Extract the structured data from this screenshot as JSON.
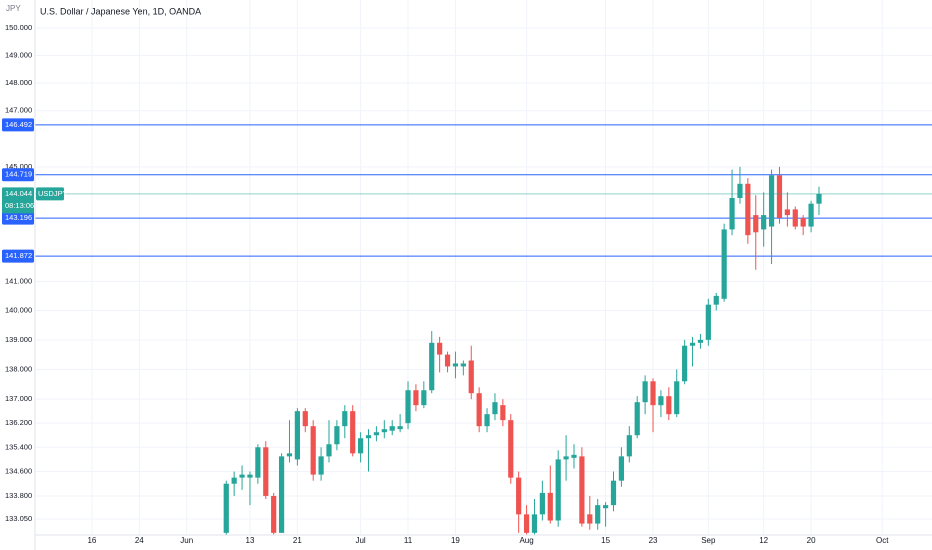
{
  "chart_data": {
    "type": "candlestick",
    "title": "U.S. Dollar / Japanese Yen, 1D, OANDA",
    "currency": "JPY",
    "symbol": "USDJPY",
    "countdown": "08:13:06",
    "log_scale": true,
    "grid": true,
    "up_color": "#26a69a",
    "down_color": "#ef5350",
    "line_color": "#2962ff",
    "x": [
      -3,
      -2,
      -1,
      0,
      1,
      2,
      3,
      4,
      5,
      6,
      7,
      8,
      9,
      10,
      11,
      12,
      13,
      14,
      15,
      16,
      17,
      18,
      19,
      20,
      21,
      22,
      23,
      24,
      25,
      26,
      27,
      28,
      29,
      30,
      31,
      32,
      33,
      34,
      35,
      36,
      37,
      38,
      39,
      40,
      41,
      42,
      43,
      44,
      45,
      46,
      47,
      48,
      49,
      50,
      51,
      52,
      53,
      54,
      55,
      56,
      57,
      58,
      59,
      60,
      61,
      62,
      63,
      64,
      65,
      66,
      67,
      68,
      69,
      70,
      71,
      72
    ],
    "open": [
      132.6,
      134.2,
      134.4,
      134.4,
      134.4,
      135.4,
      133.8,
      132.6,
      135.1,
      135.0,
      136.6,
      136.1,
      134.5,
      135.1,
      135.5,
      136.1,
      136.6,
      135.2,
      135.7,
      135.8,
      135.9,
      135.95,
      136.0,
      136.2,
      137.3,
      136.8,
      137.3,
      138.9,
      138.5,
      138.1,
      138.1,
      138.3,
      137.2,
      136.1,
      136.5,
      136.8,
      136.3,
      134.4,
      133.2,
      132.6,
      133.2,
      133.9,
      133.0,
      135.0,
      135.05,
      135.1,
      133.2,
      132.9,
      133.4,
      133.5,
      134.3,
      135.1,
      135.8,
      136.9,
      137.6,
      136.8,
      137.1,
      136.5,
      137.6,
      138.8,
      138.9,
      139.0,
      140.2,
      140.4,
      142.8,
      143.9,
      144.4,
      143.3,
      142.8,
      142.9,
      144.7,
      143.5,
      143.5,
      143.2,
      142.9,
      143.7
    ],
    "high": [
      134.3,
      134.6,
      134.8,
      134.6,
      135.5,
      135.6,
      133.9,
      135.2,
      136.3,
      136.7,
      136.7,
      136.3,
      135.4,
      136.3,
      136.3,
      136.8,
      136.8,
      135.9,
      136.0,
      136.1,
      136.3,
      136.3,
      136.5,
      137.6,
      137.5,
      137.6,
      139.3,
      139.1,
      138.6,
      138.6,
      138.3,
      138.8,
      137.4,
      136.7,
      137.2,
      137.0,
      136.5,
      134.6,
      133.5,
      133.7,
      134.3,
      134.8,
      135.3,
      135.8,
      135.5,
      135.4,
      133.8,
      133.7,
      133.6,
      134.6,
      135.4,
      136.1,
      137.1,
      137.8,
      137.7,
      137.3,
      137.4,
      138.0,
      139.0,
      139.1,
      139.2,
      140.4,
      140.6,
      143.0,
      144.9,
      145.0,
      144.6,
      144.0,
      144.1,
      144.9,
      145.0,
      144.1,
      143.6,
      143.3,
      143.8,
      144.3
    ],
    "low": [
      132.5,
      133.8,
      134.0,
      133.5,
      134.2,
      133.7,
      132.55,
      132.6,
      134.9,
      134.8,
      135.9,
      134.3,
      134.3,
      134.9,
      135.3,
      135.7,
      135.1,
      134.9,
      134.6,
      135.6,
      135.7,
      135.8,
      135.9,
      136.0,
      136.6,
      136.7,
      137.2,
      137.9,
      137.9,
      137.7,
      137.8,
      137.0,
      135.9,
      135.9,
      136.3,
      136.1,
      134.2,
      132.6,
      132.55,
      132.55,
      133.0,
      132.9,
      132.8,
      134.3,
      134.7,
      132.8,
      132.7,
      132.7,
      132.8,
      133.3,
      134.1,
      134.9,
      135.7,
      136.5,
      135.9,
      136.4,
      136.3,
      136.4,
      137.5,
      138.1,
      138.7,
      138.8,
      140.0,
      140.3,
      142.6,
      143.7,
      142.3,
      141.4,
      142.2,
      141.6,
      143.0,
      142.9,
      142.8,
      142.6,
      142.7,
      143.3
    ],
    "close": [
      134.2,
      134.4,
      134.5,
      134.5,
      135.4,
      133.8,
      132.6,
      135.1,
      135.2,
      136.6,
      136.1,
      134.5,
      135.1,
      135.5,
      136.1,
      136.6,
      135.2,
      135.7,
      135.8,
      135.9,
      136.0,
      136.1,
      136.1,
      137.3,
      136.8,
      137.3,
      138.9,
      138.5,
      138.1,
      138.2,
      138.2,
      137.2,
      136.1,
      136.5,
      136.9,
      136.3,
      134.4,
      133.2,
      132.6,
      133.2,
      133.9,
      133.0,
      135.0,
      135.1,
      135.15,
      132.9,
      132.9,
      133.5,
      133.5,
      134.3,
      135.1,
      135.8,
      136.9,
      137.6,
      136.8,
      137.1,
      136.5,
      137.6,
      138.8,
      138.9,
      139.0,
      140.2,
      140.5,
      142.8,
      143.9,
      144.4,
      142.6,
      142.7,
      143.3,
      144.7,
      143.2,
      143.3,
      142.9,
      142.9,
      143.7,
      144.044
    ],
    "last_price": 144.044,
    "hlines": [
      146.492,
      144.719,
      143.196,
      141.872
    ],
    "xlim": [
      -27.2,
      86.3
    ],
    "ylim": [
      132.53,
      151.03
    ],
    "yticks": [
      {
        "value": 150,
        "label": "150.000"
      },
      {
        "value": 149,
        "label": "149.000"
      },
      {
        "value": 148,
        "label": "148.000"
      },
      {
        "value": 147,
        "label": "147.000"
      },
      {
        "value": 145,
        "label": "145.000"
      },
      {
        "value": 141,
        "label": "141.000"
      },
      {
        "value": 140,
        "label": "140.000"
      },
      {
        "value": 139,
        "label": "139.000"
      },
      {
        "value": 138,
        "label": "138.000"
      },
      {
        "value": 137,
        "label": "137.000"
      },
      {
        "value": 136.2,
        "label": "136.200"
      },
      {
        "value": 135.4,
        "label": "135.400"
      },
      {
        "value": 134.6,
        "label": "134.600"
      },
      {
        "value": 133.8,
        "label": "133.800"
      },
      {
        "value": 133.05,
        "label": "133.050"
      }
    ],
    "xticks": [
      {
        "value": -20,
        "label": "16"
      },
      {
        "value": -14,
        "label": "24"
      },
      {
        "value": -8,
        "label": "Jun"
      },
      {
        "value": 0,
        "label": "13"
      },
      {
        "value": 6,
        "label": "21"
      },
      {
        "value": 14,
        "label": "Jul"
      },
      {
        "value": 20,
        "label": "11"
      },
      {
        "value": 26,
        "label": "19"
      },
      {
        "value": 35,
        "label": "Aug"
      },
      {
        "value": 45,
        "label": "15"
      },
      {
        "value": 51,
        "label": "23"
      },
      {
        "value": 58,
        "label": "Sep"
      },
      {
        "value": 65,
        "label": "12"
      },
      {
        "value": 71,
        "label": "20"
      },
      {
        "value": 80,
        "label": "Oct"
      }
    ]
  }
}
